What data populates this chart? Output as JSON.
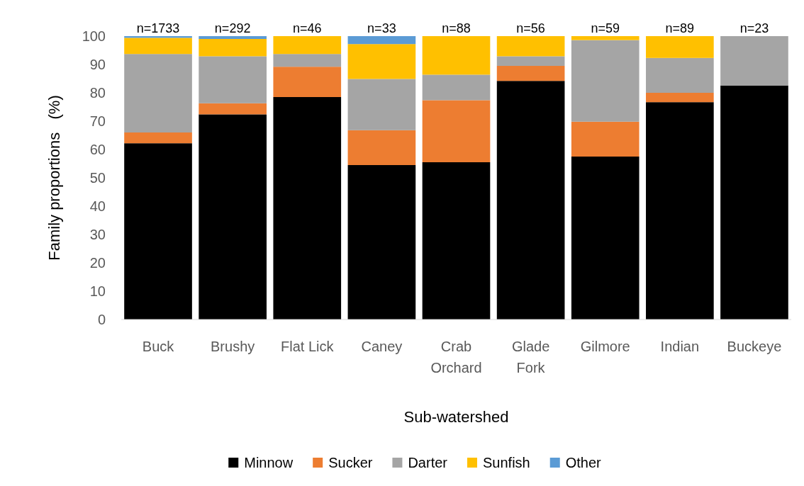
{
  "chart_data": {
    "type": "bar",
    "stacked": true,
    "xlabel": "Sub-watershed",
    "ylabel": "Family proportions   (%)",
    "categories": [
      "Buck",
      "Brushy",
      "Flat Lick",
      "Caney",
      "Crab Orchard",
      "Glade Fork",
      "Gilmore",
      "Indian",
      "Buckeye"
    ],
    "series": [
      {
        "name": "Minnow",
        "color": "#000000",
        "values": [
          62.2,
          72.4,
          78.5,
          54.5,
          55.5,
          84.2,
          57.5,
          76.7,
          82.6
        ]
      },
      {
        "name": "Sucker",
        "color": "#ed7d31",
        "values": [
          3.8,
          3.9,
          10.7,
          12.3,
          21.9,
          5.3,
          12.3,
          3.3,
          0
        ]
      },
      {
        "name": "Darter",
        "color": "#a5a5a5",
        "values": [
          27.7,
          16.6,
          4.5,
          18.1,
          9.0,
          3.4,
          28.8,
          12.3,
          17.4
        ]
      },
      {
        "name": "Sunfish",
        "color": "#ffc000",
        "values": [
          5.7,
          6.1,
          6.3,
          12.3,
          13.6,
          7.1,
          1.4,
          7.7,
          0
        ]
      },
      {
        "name": "Other",
        "color": "#5b9bd5",
        "values": [
          0.6,
          1.0,
          0,
          2.8,
          0,
          0,
          0,
          0,
          0
        ]
      }
    ],
    "ylim": [
      0,
      100
    ],
    "yticks": [
      0,
      10,
      20,
      30,
      40,
      50,
      60,
      70,
      80,
      90,
      100
    ],
    "legend": "bottom",
    "annotations": [
      {
        "text": "n=1733",
        "x": "Buck",
        "y": 100
      },
      {
        "text": "n=292",
        "x": "Brushy",
        "y": 100
      },
      {
        "text": "n=46",
        "x": "Flat Lick",
        "y": 100
      },
      {
        "text": "n=33",
        "x": "Caney",
        "y": 100
      },
      {
        "text": "n=88",
        "x": "Crab Orchard",
        "y": 100
      },
      {
        "text": "n=56",
        "x": "Glade Fork",
        "y": 100
      },
      {
        "text": "n=59",
        "x": "Gilmore",
        "y": 100
      },
      {
        "text": "n=89",
        "x": "Indian",
        "y": 100
      },
      {
        "text": "n=23",
        "x": "Buckeye",
        "y": 100
      }
    ]
  }
}
